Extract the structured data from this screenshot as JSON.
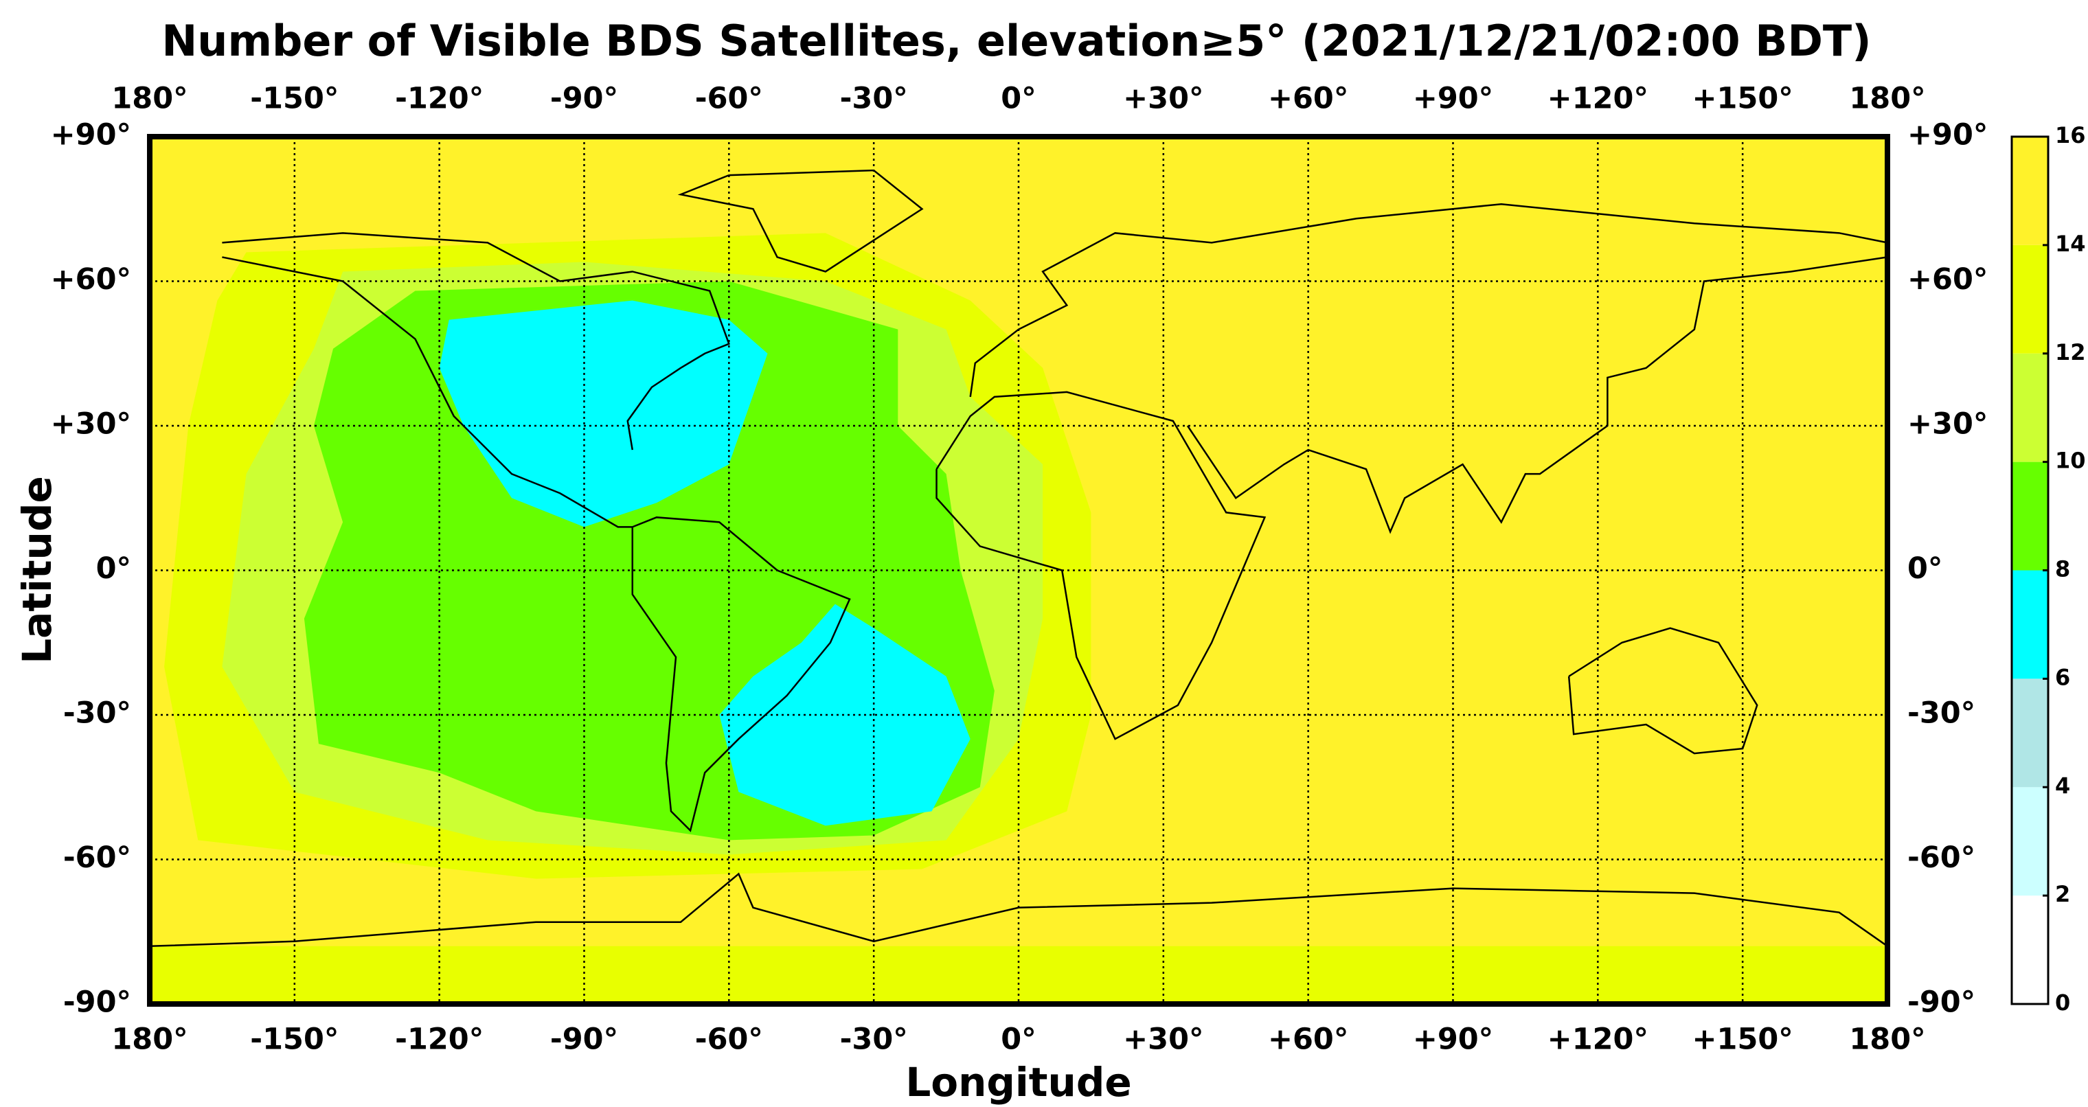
{
  "chart_data": {
    "type": "map",
    "title": "Number of Visible BDS Satellites, elevation≥5° (2021/12/21/02:00 BDT)",
    "xlabel": "Longitude",
    "ylabel": "Latitude",
    "xlim": [
      -180,
      180
    ],
    "ylim": [
      -90,
      90
    ],
    "xticks": [
      {
        "value": -180,
        "label": "180°"
      },
      {
        "value": -150,
        "label": "-150°"
      },
      {
        "value": -120,
        "label": "-120°"
      },
      {
        "value": -90,
        "label": "-90°"
      },
      {
        "value": -60,
        "label": "-60°"
      },
      {
        "value": -30,
        "label": "-30°"
      },
      {
        "value": 0,
        "label": "0°"
      },
      {
        "value": 30,
        "label": "+30°"
      },
      {
        "value": 60,
        "label": "+60°"
      },
      {
        "value": 90,
        "label": "+90°"
      },
      {
        "value": 120,
        "label": "+120°"
      },
      {
        "value": 150,
        "label": "+150°"
      },
      {
        "value": 180,
        "label": "180°"
      }
    ],
    "yticks": [
      {
        "value": 90,
        "label": "+90°"
      },
      {
        "value": 60,
        "label": "+60°"
      },
      {
        "value": 30,
        "label": "+30°"
      },
      {
        "value": 0,
        "label": "0°"
      },
      {
        "value": -30,
        "label": "-30°"
      },
      {
        "value": -60,
        "label": "-60°"
      },
      {
        "value": -90,
        "label": "-90°"
      }
    ],
    "grid": true,
    "colorbar": {
      "ticks": [
        0,
        2,
        4,
        6,
        8,
        10,
        12,
        14,
        16
      ],
      "colors": [
        "#ffffff",
        "#ccffff",
        "#b0e6e6",
        "#00ffff",
        "#66ff00",
        "#ccff33",
        "#e8ff00",
        "#fff22a"
      ]
    }
  }
}
